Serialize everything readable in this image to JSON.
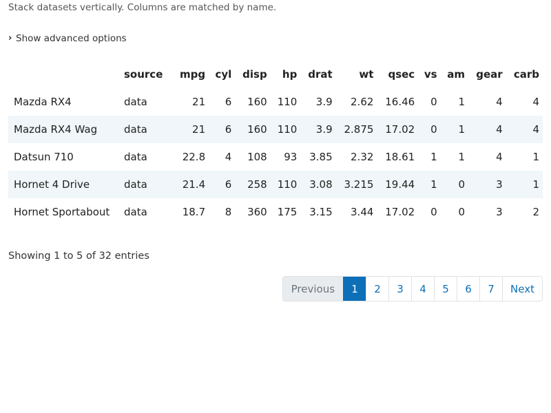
{
  "description": "Stack datasets vertically. Columns are matched by name.",
  "advanced_toggle": {
    "icon": "chevron-right-icon",
    "label": "Show advanced options"
  },
  "table": {
    "columns": [
      "",
      "source",
      "mpg",
      "cyl",
      "disp",
      "hp",
      "drat",
      "wt",
      "qsec",
      "vs",
      "am",
      "gear",
      "carb"
    ],
    "rows": [
      [
        "Mazda RX4",
        "data",
        "21",
        "6",
        "160",
        "110",
        "3.9",
        "2.62",
        "16.46",
        "0",
        "1",
        "4",
        "4"
      ],
      [
        "Mazda RX4 Wag",
        "data",
        "21",
        "6",
        "160",
        "110",
        "3.9",
        "2.875",
        "17.02",
        "0",
        "1",
        "4",
        "4"
      ],
      [
        "Datsun 710",
        "data",
        "22.8",
        "4",
        "108",
        "93",
        "3.85",
        "2.32",
        "18.61",
        "1",
        "1",
        "4",
        "1"
      ],
      [
        "Hornet 4 Drive",
        "data",
        "21.4",
        "6",
        "258",
        "110",
        "3.08",
        "3.215",
        "19.44",
        "1",
        "0",
        "3",
        "1"
      ],
      [
        "Hornet Sportabout",
        "data",
        "18.7",
        "8",
        "360",
        "175",
        "3.15",
        "3.44",
        "17.02",
        "0",
        "0",
        "3",
        "2"
      ]
    ]
  },
  "info": "Showing 1 to 5 of 32 entries",
  "pagination": {
    "previous_label": "Previous",
    "pages": [
      "1",
      "2",
      "3",
      "4",
      "5",
      "6",
      "7"
    ],
    "active_page": "1",
    "next_label": "Next"
  },
  "colors": {
    "accent": "#0d6fb8",
    "stripe": "#f0f6f9",
    "disabled_bg": "#e9ecef"
  }
}
